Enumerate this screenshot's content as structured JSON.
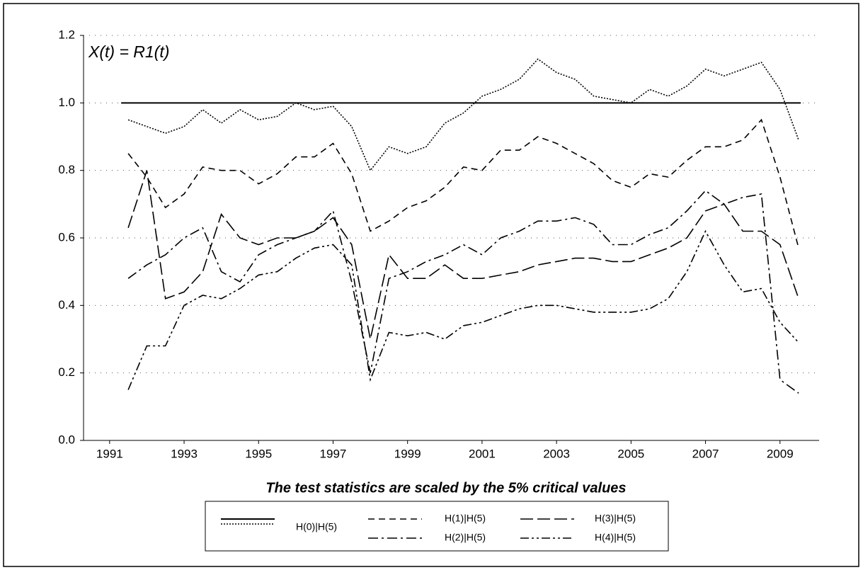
{
  "chart_data": {
    "type": "line",
    "annotation": "X(t) = R1(t)",
    "x_label": "The test statistics are scaled by the 5% critical values",
    "x": [
      1991.5,
      1992,
      1992.5,
      1993,
      1993.5,
      1994,
      1994.5,
      1995,
      1995.5,
      1996,
      1996.5,
      1997,
      1997.5,
      1998,
      1998.5,
      1999,
      1999.5,
      2000,
      2000.5,
      2001,
      2001.5,
      2002,
      2002.5,
      2003,
      2003.5,
      2004,
      2004.5,
      2005,
      2005.5,
      2006,
      2006.5,
      2007,
      2007.5,
      2008,
      2008.5,
      2009,
      2009.5
    ],
    "hline": 1,
    "series": [
      {
        "name": "H(0)|H(5)",
        "color": "#000000",
        "line_style": "dotted",
        "values": [
          0.95,
          0.93,
          0.91,
          0.93,
          0.98,
          0.94,
          0.98,
          0.95,
          0.96,
          1.0,
          0.98,
          0.99,
          0.93,
          0.8,
          0.87,
          0.85,
          0.87,
          0.94,
          0.97,
          1.02,
          1.04,
          1.07,
          1.13,
          1.09,
          1.07,
          1.02,
          1.01,
          1.0,
          1.04,
          1.02,
          1.05,
          1.1,
          1.08,
          1.1,
          1.12,
          1.04,
          0.89
        ]
      },
      {
        "name": "H(1)|H(5)",
        "color": "#000000",
        "line_style": "dashed",
        "values": [
          0.85,
          0.78,
          0.69,
          0.73,
          0.81,
          0.8,
          0.8,
          0.76,
          0.79,
          0.84,
          0.84,
          0.88,
          0.79,
          0.62,
          0.65,
          0.69,
          0.71,
          0.75,
          0.81,
          0.8,
          0.86,
          0.86,
          0.9,
          0.88,
          0.85,
          0.82,
          0.77,
          0.75,
          0.79,
          0.78,
          0.83,
          0.87,
          0.87,
          0.89,
          0.95,
          0.78,
          0.57
        ]
      },
      {
        "name": "H(2)|H(5)",
        "color": "#000000",
        "line_style": "dash-dot",
        "values": [
          0.48,
          0.52,
          0.55,
          0.6,
          0.63,
          0.5,
          0.47,
          0.55,
          0.58,
          0.6,
          0.62,
          0.68,
          0.47,
          0.2,
          0.48,
          0.5,
          0.53,
          0.55,
          0.58,
          0.55,
          0.6,
          0.62,
          0.65,
          0.65,
          0.66,
          0.64,
          0.58,
          0.58,
          0.61,
          0.63,
          0.68,
          0.74,
          0.7,
          0.72,
          0.73,
          0.18,
          0.14
        ]
      },
      {
        "name": "H(3)|H(5)",
        "color": "#000000",
        "line_style": "long-dash",
        "values": [
          0.63,
          0.8,
          0.42,
          0.44,
          0.5,
          0.67,
          0.6,
          0.58,
          0.6,
          0.6,
          0.62,
          0.66,
          0.58,
          0.3,
          0.55,
          0.48,
          0.48,
          0.52,
          0.48,
          0.48,
          0.49,
          0.5,
          0.52,
          0.53,
          0.54,
          0.54,
          0.53,
          0.53,
          0.55,
          0.57,
          0.6,
          0.68,
          0.7,
          0.62,
          0.62,
          0.58,
          0.42
        ]
      },
      {
        "name": "H(4)|H(5)",
        "color": "#000000",
        "line_style": "dash-dot-dot",
        "values": [
          0.15,
          0.28,
          0.28,
          0.4,
          0.43,
          0.42,
          0.45,
          0.49,
          0.5,
          0.54,
          0.57,
          0.58,
          0.52,
          0.18,
          0.32,
          0.31,
          0.32,
          0.3,
          0.34,
          0.35,
          0.37,
          0.39,
          0.4,
          0.4,
          0.39,
          0.38,
          0.38,
          0.38,
          0.39,
          0.42,
          0.5,
          0.62,
          0.52,
          0.44,
          0.45,
          0.35,
          0.29
        ]
      }
    ],
    "xlim": [
      1990.3,
      2010.05
    ],
    "xticks": [
      1991,
      1993,
      1995,
      1997,
      1999,
      2001,
      2003,
      2005,
      2007,
      2009
    ],
    "ylim": [
      0,
      1.2
    ],
    "yticks": [
      {
        "value": 0,
        "label": "0.0"
      },
      0.2,
      0.4,
      0.6,
      0.8,
      {
        "value": 1,
        "label": "1.0"
      },
      1.2
    ],
    "grid": true
  }
}
